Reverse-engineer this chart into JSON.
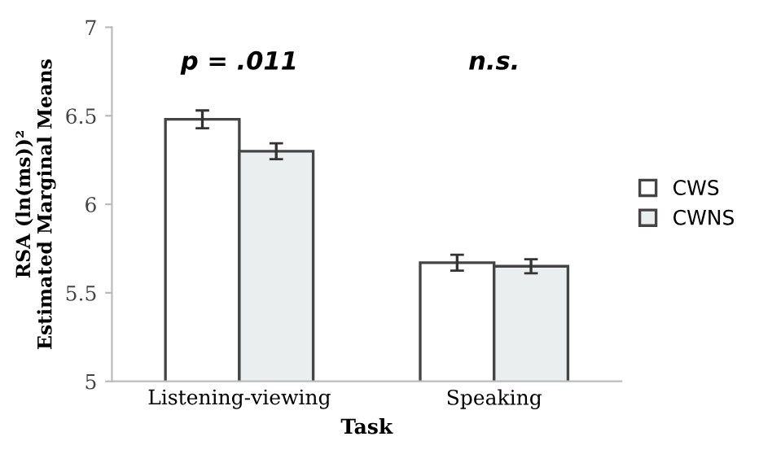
{
  "chart_data": {
    "type": "bar",
    "xlabel": "Task",
    "ylabel": "RSA (ln(ms))²\nEstimated Marginal Means",
    "categories": [
      "Listening-viewing",
      "Speaking"
    ],
    "series": [
      {
        "name": "CWS",
        "color": "#ffffff",
        "values": [
          6.48,
          5.67
        ],
        "errors": [
          0.05,
          0.045
        ]
      },
      {
        "name": "CWNS",
        "color": "#eaeeee",
        "values": [
          6.3,
          5.65
        ],
        "errors": [
          0.045,
          0.04
        ]
      }
    ],
    "ylim": [
      5,
      7
    ],
    "yticks": [
      5,
      5.5,
      6,
      6.5,
      7
    ],
    "annotations": [
      "p = .011",
      "n.s."
    ],
    "grid": false,
    "legend": "right"
  }
}
